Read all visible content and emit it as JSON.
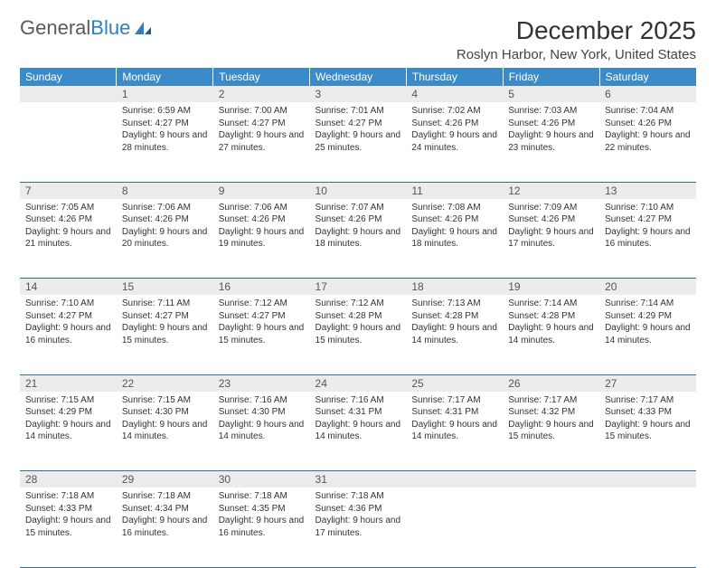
{
  "logo": {
    "text1": "General",
    "text2": "Blue"
  },
  "title": "December 2025",
  "location": "Roslyn Harbor, New York, United States",
  "header_bg": "#3b8bc9",
  "daynum_bg": "#ececec",
  "border_color": "#2f6fa0",
  "days": [
    "Sunday",
    "Monday",
    "Tuesday",
    "Wednesday",
    "Thursday",
    "Friday",
    "Saturday"
  ],
  "weeks": [
    [
      null,
      {
        "n": "1",
        "sr": "Sunrise: 6:59 AM",
        "ss": "Sunset: 4:27 PM",
        "dl": "Daylight: 9 hours and 28 minutes."
      },
      {
        "n": "2",
        "sr": "Sunrise: 7:00 AM",
        "ss": "Sunset: 4:27 PM",
        "dl": "Daylight: 9 hours and 27 minutes."
      },
      {
        "n": "3",
        "sr": "Sunrise: 7:01 AM",
        "ss": "Sunset: 4:27 PM",
        "dl": "Daylight: 9 hours and 25 minutes."
      },
      {
        "n": "4",
        "sr": "Sunrise: 7:02 AM",
        "ss": "Sunset: 4:26 PM",
        "dl": "Daylight: 9 hours and 24 minutes."
      },
      {
        "n": "5",
        "sr": "Sunrise: 7:03 AM",
        "ss": "Sunset: 4:26 PM",
        "dl": "Daylight: 9 hours and 23 minutes."
      },
      {
        "n": "6",
        "sr": "Sunrise: 7:04 AM",
        "ss": "Sunset: 4:26 PM",
        "dl": "Daylight: 9 hours and 22 minutes."
      }
    ],
    [
      {
        "n": "7",
        "sr": "Sunrise: 7:05 AM",
        "ss": "Sunset: 4:26 PM",
        "dl": "Daylight: 9 hours and 21 minutes."
      },
      {
        "n": "8",
        "sr": "Sunrise: 7:06 AM",
        "ss": "Sunset: 4:26 PM",
        "dl": "Daylight: 9 hours and 20 minutes."
      },
      {
        "n": "9",
        "sr": "Sunrise: 7:06 AM",
        "ss": "Sunset: 4:26 PM",
        "dl": "Daylight: 9 hours and 19 minutes."
      },
      {
        "n": "10",
        "sr": "Sunrise: 7:07 AM",
        "ss": "Sunset: 4:26 PM",
        "dl": "Daylight: 9 hours and 18 minutes."
      },
      {
        "n": "11",
        "sr": "Sunrise: 7:08 AM",
        "ss": "Sunset: 4:26 PM",
        "dl": "Daylight: 9 hours and 18 minutes."
      },
      {
        "n": "12",
        "sr": "Sunrise: 7:09 AM",
        "ss": "Sunset: 4:26 PM",
        "dl": "Daylight: 9 hours and 17 minutes."
      },
      {
        "n": "13",
        "sr": "Sunrise: 7:10 AM",
        "ss": "Sunset: 4:27 PM",
        "dl": "Daylight: 9 hours and 16 minutes."
      }
    ],
    [
      {
        "n": "14",
        "sr": "Sunrise: 7:10 AM",
        "ss": "Sunset: 4:27 PM",
        "dl": "Daylight: 9 hours and 16 minutes."
      },
      {
        "n": "15",
        "sr": "Sunrise: 7:11 AM",
        "ss": "Sunset: 4:27 PM",
        "dl": "Daylight: 9 hours and 15 minutes."
      },
      {
        "n": "16",
        "sr": "Sunrise: 7:12 AM",
        "ss": "Sunset: 4:27 PM",
        "dl": "Daylight: 9 hours and 15 minutes."
      },
      {
        "n": "17",
        "sr": "Sunrise: 7:12 AM",
        "ss": "Sunset: 4:28 PM",
        "dl": "Daylight: 9 hours and 15 minutes."
      },
      {
        "n": "18",
        "sr": "Sunrise: 7:13 AM",
        "ss": "Sunset: 4:28 PM",
        "dl": "Daylight: 9 hours and 14 minutes."
      },
      {
        "n": "19",
        "sr": "Sunrise: 7:14 AM",
        "ss": "Sunset: 4:28 PM",
        "dl": "Daylight: 9 hours and 14 minutes."
      },
      {
        "n": "20",
        "sr": "Sunrise: 7:14 AM",
        "ss": "Sunset: 4:29 PM",
        "dl": "Daylight: 9 hours and 14 minutes."
      }
    ],
    [
      {
        "n": "21",
        "sr": "Sunrise: 7:15 AM",
        "ss": "Sunset: 4:29 PM",
        "dl": "Daylight: 9 hours and 14 minutes."
      },
      {
        "n": "22",
        "sr": "Sunrise: 7:15 AM",
        "ss": "Sunset: 4:30 PM",
        "dl": "Daylight: 9 hours and 14 minutes."
      },
      {
        "n": "23",
        "sr": "Sunrise: 7:16 AM",
        "ss": "Sunset: 4:30 PM",
        "dl": "Daylight: 9 hours and 14 minutes."
      },
      {
        "n": "24",
        "sr": "Sunrise: 7:16 AM",
        "ss": "Sunset: 4:31 PM",
        "dl": "Daylight: 9 hours and 14 minutes."
      },
      {
        "n": "25",
        "sr": "Sunrise: 7:17 AM",
        "ss": "Sunset: 4:31 PM",
        "dl": "Daylight: 9 hours and 14 minutes."
      },
      {
        "n": "26",
        "sr": "Sunrise: 7:17 AM",
        "ss": "Sunset: 4:32 PM",
        "dl": "Daylight: 9 hours and 15 minutes."
      },
      {
        "n": "27",
        "sr": "Sunrise: 7:17 AM",
        "ss": "Sunset: 4:33 PM",
        "dl": "Daylight: 9 hours and 15 minutes."
      }
    ],
    [
      {
        "n": "28",
        "sr": "Sunrise: 7:18 AM",
        "ss": "Sunset: 4:33 PM",
        "dl": "Daylight: 9 hours and 15 minutes."
      },
      {
        "n": "29",
        "sr": "Sunrise: 7:18 AM",
        "ss": "Sunset: 4:34 PM",
        "dl": "Daylight: 9 hours and 16 minutes."
      },
      {
        "n": "30",
        "sr": "Sunrise: 7:18 AM",
        "ss": "Sunset: 4:35 PM",
        "dl": "Daylight: 9 hours and 16 minutes."
      },
      {
        "n": "31",
        "sr": "Sunrise: 7:18 AM",
        "ss": "Sunset: 4:36 PM",
        "dl": "Daylight: 9 hours and 17 minutes."
      },
      null,
      null,
      null
    ]
  ]
}
